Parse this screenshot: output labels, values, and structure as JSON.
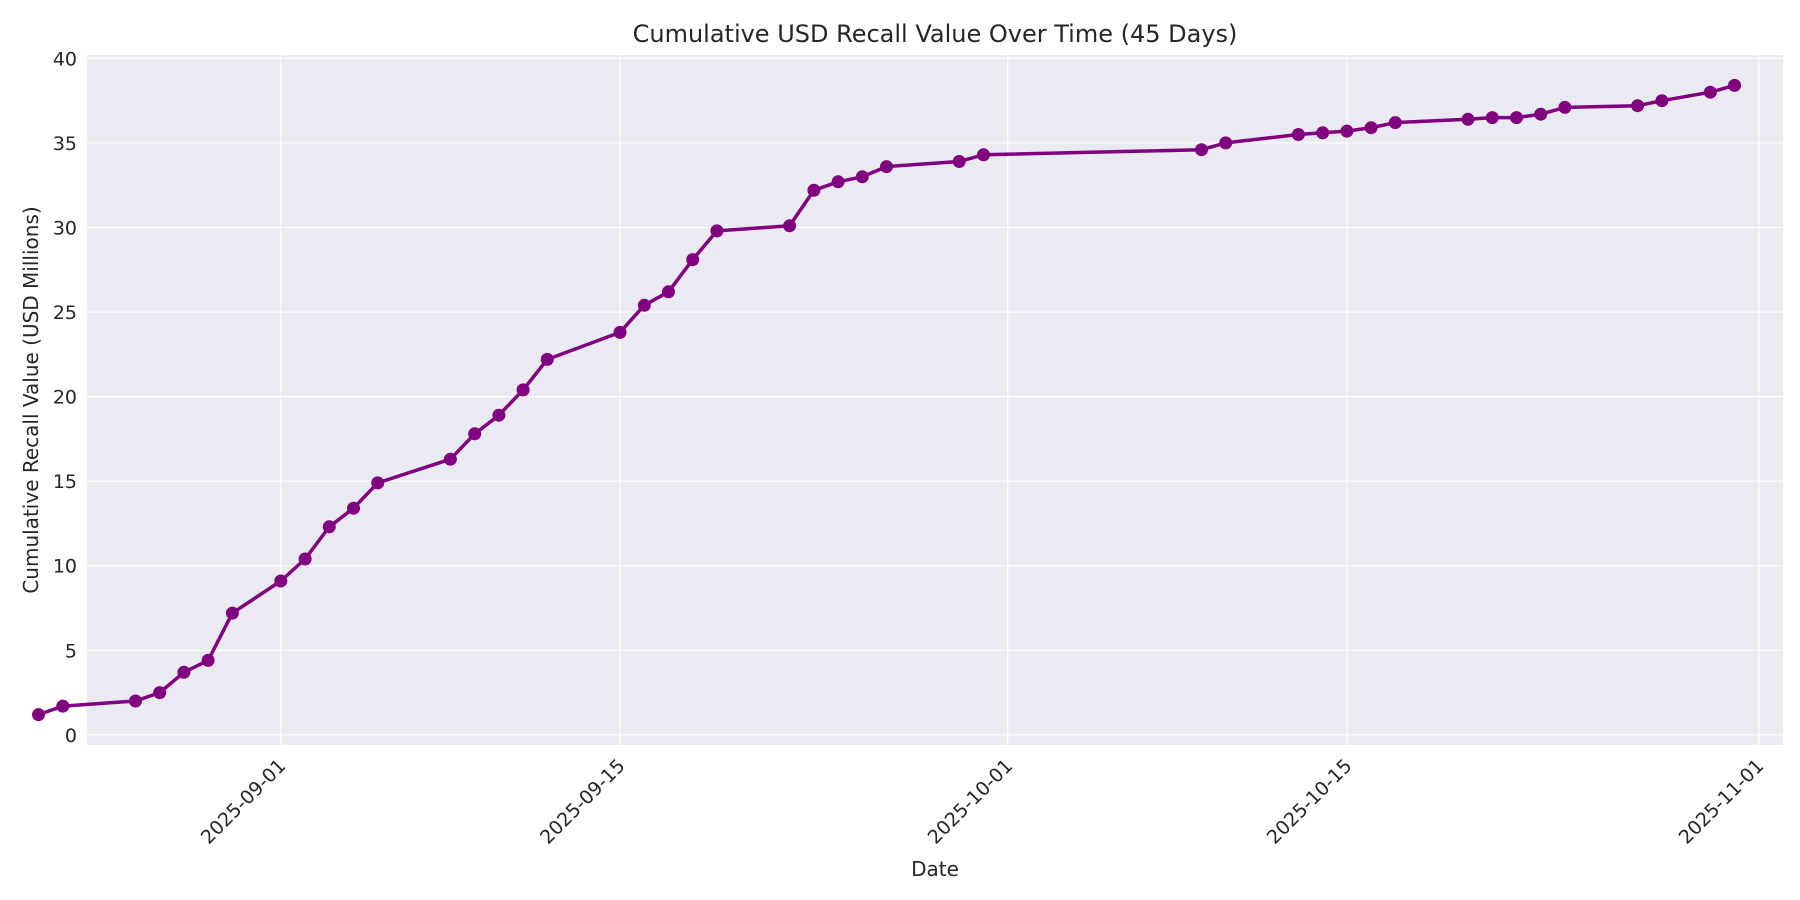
{
  "chart_data": {
    "type": "line",
    "title": "Cumulative USD Recall Value Over Time (45 Days)",
    "xlabel": "Date",
    "ylabel": "Cumulative Recall Value (USD Millions)",
    "xlim": [
      "2025-08-24",
      "2025-11-02"
    ],
    "ylim": [
      -0.6,
      40.2
    ],
    "x_ticks": [
      "2025-09-01",
      "2025-09-15",
      "2025-10-01",
      "2025-10-15",
      "2025-11-01"
    ],
    "y_ticks": [
      0,
      5,
      10,
      15,
      20,
      25,
      30,
      35,
      40
    ],
    "grid": true,
    "line_color": "#800080",
    "plot_background": "#eaeaf2",
    "series": [
      {
        "x": [
          "2025-08-22",
          "2025-08-23",
          "2025-08-26",
          "2025-08-27",
          "2025-08-28",
          "2025-08-29",
          "2025-08-30",
          "2025-09-01",
          "2025-09-02",
          "2025-09-03",
          "2025-09-04",
          "2025-09-05",
          "2025-09-08",
          "2025-09-09",
          "2025-09-10",
          "2025-09-11",
          "2025-09-12",
          "2025-09-15",
          "2025-09-16",
          "2025-09-17",
          "2025-09-18",
          "2025-09-19",
          "2025-09-22",
          "2025-09-23",
          "2025-09-24",
          "2025-09-25",
          "2025-09-26",
          "2025-09-29",
          "2025-09-30",
          "2025-10-09",
          "2025-10-10",
          "2025-10-13",
          "2025-10-14",
          "2025-10-15",
          "2025-10-16",
          "2025-10-17",
          "2025-10-20",
          "2025-10-21",
          "2025-10-22",
          "2025-10-23",
          "2025-10-24",
          "2025-10-27",
          "2025-10-28",
          "2025-10-30",
          "2025-10-31"
        ],
        "values": [
          1.2,
          1.7,
          2.0,
          2.5,
          3.7,
          4.4,
          7.2,
          9.1,
          10.4,
          12.3,
          13.4,
          14.9,
          16.3,
          17.8,
          18.9,
          20.4,
          22.2,
          23.8,
          25.4,
          26.2,
          28.1,
          29.8,
          30.1,
          32.2,
          32.7,
          33.0,
          33.6,
          33.9,
          34.3,
          34.6,
          35.0,
          35.5,
          35.6,
          35.7,
          35.9,
          36.2,
          36.4,
          36.5,
          36.5,
          36.7,
          37.1,
          37.2,
          37.5,
          38.0,
          38.4
        ]
      }
    ]
  }
}
